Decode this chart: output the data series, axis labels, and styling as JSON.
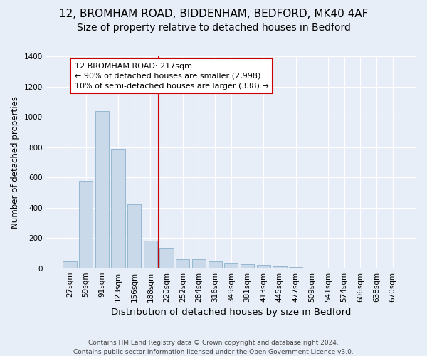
{
  "title_line1": "12, BROMHAM ROAD, BIDDENHAM, BEDFORD, MK40 4AF",
  "title_line2": "Size of property relative to detached houses in Bedford",
  "xlabel": "Distribution of detached houses by size in Bedford",
  "ylabel": "Number of detached properties",
  "footnote1": "Contains HM Land Registry data © Crown copyright and database right 2024.",
  "footnote2": "Contains public sector information licensed under the Open Government Licence v3.0.",
  "bar_labels": [
    "27sqm",
    "59sqm",
    "91sqm",
    "123sqm",
    "156sqm",
    "188sqm",
    "220sqm",
    "252sqm",
    "284sqm",
    "316sqm",
    "349sqm",
    "381sqm",
    "413sqm",
    "445sqm",
    "477sqm",
    "509sqm",
    "541sqm",
    "574sqm",
    "606sqm",
    "638sqm",
    "670sqm"
  ],
  "bar_values": [
    45,
    575,
    1040,
    790,
    420,
    180,
    130,
    60,
    60,
    45,
    30,
    28,
    20,
    12,
    10,
    0,
    0,
    0,
    0,
    0,
    0
  ],
  "bar_color": "#c9d9ea",
  "bar_edgecolor": "#8ab0cc",
  "vline_color": "#cc0000",
  "vline_index": 6,
  "annotation_line1": "12 BROMHAM ROAD: 217sqm",
  "annotation_line2": "← 90% of detached houses are smaller (2,998)",
  "annotation_line3": "10% of semi-detached houses are larger (338) →",
  "annotation_box_edgecolor": "#cc0000",
  "annotation_box_facecolor": "#ffffff",
  "ylim": [
    0,
    1400
  ],
  "yticks": [
    0,
    200,
    400,
    600,
    800,
    1000,
    1200,
    1400
  ],
  "plot_bg_color": "#e8eef8",
  "title1_fontsize": 11,
  "title2_fontsize": 10,
  "xlabel_fontsize": 9.5,
  "ylabel_fontsize": 8.5,
  "tick_fontsize": 7.5,
  "annot_fontsize": 8,
  "footnote_fontsize": 6.5
}
